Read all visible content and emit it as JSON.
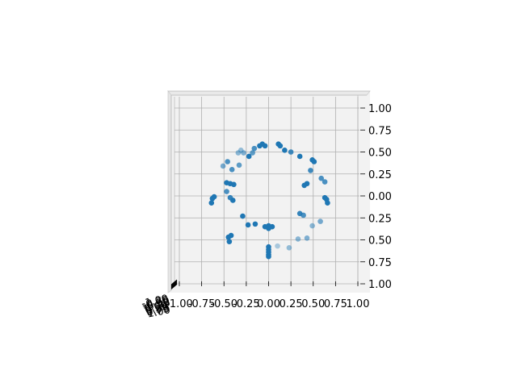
{
  "chart_data": {
    "type": "scatter",
    "projection": "3d",
    "view": "top-down",
    "title": "",
    "xlabel": "",
    "ylabel": "",
    "zlabel": "",
    "xlim": [
      -1.0,
      1.0
    ],
    "ylim": [
      -1.0,
      1.0
    ],
    "grid": true,
    "marker_color": "#1f77b4",
    "pane_color": "#f2f2f2",
    "x_ticks": [
      "-1.00",
      "-0.75",
      "-0.50",
      "-0.25",
      "0.00",
      "0.25",
      "0.50",
      "0.75",
      "1.00"
    ],
    "y_ticks": [
      "1.00",
      "0.75",
      "0.50",
      "0.25",
      "0.00",
      "0.25",
      "0.50",
      "0.75",
      "1.00"
    ],
    "z_ticks": [
      "-1.00",
      "-0.75",
      "-0.50",
      "-0.25",
      "0.00",
      "0.25",
      "0.50",
      "0.75",
      "1.00"
    ],
    "points": [
      {
        "x": -0.1,
        "y": 0.57,
        "a": 1.0
      },
      {
        "x": -0.07,
        "y": 0.59,
        "a": 1.0
      },
      {
        "x": -0.04,
        "y": 0.57,
        "a": 1.0
      },
      {
        "x": 0.11,
        "y": 0.59,
        "a": 1.0
      },
      {
        "x": 0.13,
        "y": 0.57,
        "a": 1.0
      },
      {
        "x": 0.18,
        "y": 0.52,
        "a": 1.0
      },
      {
        "x": 0.25,
        "y": 0.5,
        "a": 0.85
      },
      {
        "x": 0.35,
        "y": 0.45,
        "a": 1.0
      },
      {
        "x": 0.49,
        "y": 0.41,
        "a": 1.0
      },
      {
        "x": 0.51,
        "y": 0.39,
        "a": 1.0
      },
      {
        "x": 0.47,
        "y": 0.29,
        "a": 0.85
      },
      {
        "x": 0.59,
        "y": 0.2,
        "a": 0.8
      },
      {
        "x": 0.63,
        "y": 0.16,
        "a": 0.8
      },
      {
        "x": 0.43,
        "y": 0.14,
        "a": 1.0
      },
      {
        "x": 0.4,
        "y": 0.12,
        "a": 1.0
      },
      {
        "x": 0.63,
        "y": -0.02,
        "a": 1.0
      },
      {
        "x": 0.65,
        "y": -0.04,
        "a": 1.0
      },
      {
        "x": 0.66,
        "y": -0.08,
        "a": 1.0
      },
      {
        "x": 0.35,
        "y": -0.2,
        "a": 0.9
      },
      {
        "x": 0.39,
        "y": -0.22,
        "a": 0.8
      },
      {
        "x": 0.58,
        "y": -0.29,
        "a": 0.6
      },
      {
        "x": 0.49,
        "y": -0.34,
        "a": 0.5
      },
      {
        "x": 0.43,
        "y": -0.48,
        "a": 0.55
      },
      {
        "x": 0.33,
        "y": -0.49,
        "a": 0.5
      },
      {
        "x": 0.23,
        "y": -0.59,
        "a": 0.45
      },
      {
        "x": 0.1,
        "y": -0.57,
        "a": 0.35
      },
      {
        "x": 0.0,
        "y": -0.58,
        "a": 1.0
      },
      {
        "x": 0.0,
        "y": -0.61,
        "a": 1.0
      },
      {
        "x": 0.0,
        "y": -0.64,
        "a": 1.0
      },
      {
        "x": 0.0,
        "y": -0.67,
        "a": 1.0
      },
      {
        "x": 0.0,
        "y": -0.69,
        "a": 1.0
      },
      {
        "x": -0.04,
        "y": -0.35,
        "a": 1.0
      },
      {
        "x": 0.0,
        "y": -0.34,
        "a": 1.0
      },
      {
        "x": 0.04,
        "y": -0.35,
        "a": 1.0
      },
      {
        "x": 0.0,
        "y": -0.37,
        "a": 1.0
      },
      {
        "x": -0.15,
        "y": -0.32,
        "a": 1.0
      },
      {
        "x": -0.23,
        "y": -0.33,
        "a": 1.0
      },
      {
        "x": -0.29,
        "y": -0.23,
        "a": 1.0
      },
      {
        "x": -0.42,
        "y": -0.45,
        "a": 1.0
      },
      {
        "x": -0.45,
        "y": -0.47,
        "a": 1.0
      },
      {
        "x": -0.44,
        "y": -0.52,
        "a": 1.0
      },
      {
        "x": -0.61,
        "y": -0.01,
        "a": 1.0
      },
      {
        "x": -0.63,
        "y": -0.03,
        "a": 1.0
      },
      {
        "x": -0.64,
        "y": -0.08,
        "a": 1.0
      },
      {
        "x": -0.4,
        "y": -0.05,
        "a": 1.0
      },
      {
        "x": -0.43,
        "y": -0.02,
        "a": 0.9
      },
      {
        "x": -0.47,
        "y": 0.05,
        "a": 0.8
      },
      {
        "x": -0.47,
        "y": 0.15,
        "a": 1.0
      },
      {
        "x": -0.43,
        "y": 0.14,
        "a": 1.0
      },
      {
        "x": -0.39,
        "y": 0.13,
        "a": 1.0
      },
      {
        "x": -0.41,
        "y": 0.3,
        "a": 0.8
      },
      {
        "x": -0.33,
        "y": 0.35,
        "a": 0.7
      },
      {
        "x": -0.51,
        "y": 0.34,
        "a": 0.6
      },
      {
        "x": -0.46,
        "y": 0.39,
        "a": 0.8
      },
      {
        "x": -0.34,
        "y": 0.49,
        "a": 0.5
      },
      {
        "x": -0.31,
        "y": 0.52,
        "a": 0.45
      },
      {
        "x": -0.28,
        "y": 0.49,
        "a": 0.55
      },
      {
        "x": -0.22,
        "y": 0.45,
        "a": 1.0
      },
      {
        "x": -0.16,
        "y": 0.54,
        "a": 0.8
      },
      {
        "x": -0.18,
        "y": 0.49,
        "a": 0.7
      }
    ]
  }
}
